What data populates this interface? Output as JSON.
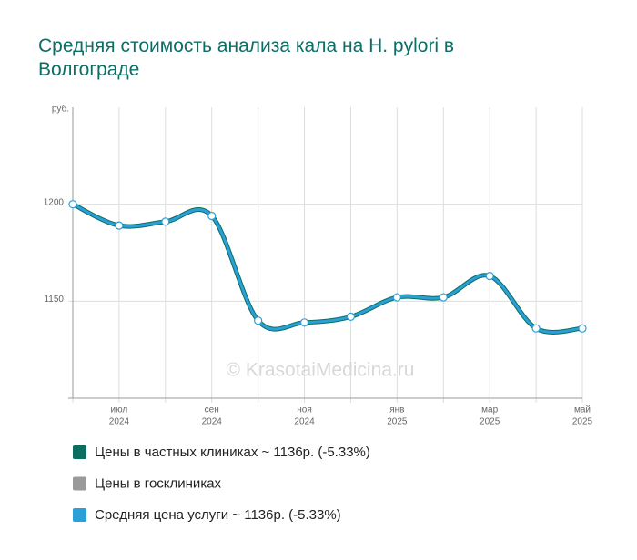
{
  "chart_data": {
    "type": "line",
    "title": "Средняя стоимость анализа кала на H. pylori в Волгограде",
    "y_unit": "руб.",
    "watermark": "© KrasotaiMedicina.ru",
    "categories": [
      null,
      "июл",
      null,
      "сен",
      null,
      "ноя",
      null,
      "янв",
      null,
      "мар",
      null,
      "май"
    ],
    "category_years": [
      null,
      "2024",
      null,
      "2024",
      null,
      "2024",
      null,
      "2025",
      null,
      "2025",
      null,
      "2025"
    ],
    "series": [
      {
        "name": "Цены в частных клиниках ~ 1136р. (-5.33%)",
        "color": "#0b6e60",
        "values": [
          1200,
          1189,
          1191,
          1194,
          1140,
          1139,
          1142,
          1152,
          1152,
          1163,
          1136,
          1136
        ]
      },
      {
        "name": "Цены в госклиниках",
        "color": "#9a9a9a",
        "values": [
          null,
          null,
          null,
          null,
          null,
          null,
          null,
          null,
          null,
          null,
          null,
          null
        ]
      },
      {
        "name": "Средняя цена услуги ~ 1136р. (-5.33%)",
        "color": "#2a9fd8",
        "values": [
          1200,
          1189,
          1191,
          1194,
          1140,
          1139,
          1142,
          1152,
          1152,
          1163,
          1136,
          1136
        ]
      }
    ],
    "ylim": [
      1100,
      1250
    ],
    "yticks": [
      1150,
      1200
    ],
    "grid": true
  }
}
